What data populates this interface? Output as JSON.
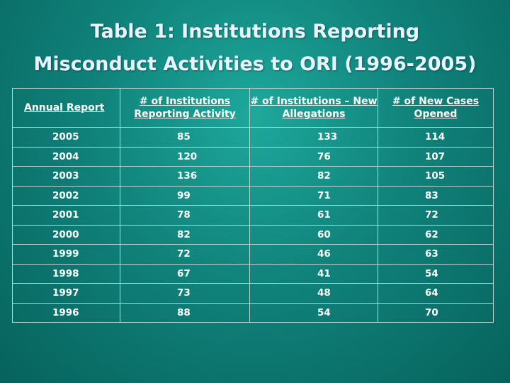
{
  "title": {
    "line1": "Table 1:  Institutions Reporting",
    "line2": "Misconduct Activities to ORI (1996-2005)"
  },
  "table": {
    "headers": [
      "Annual Report",
      "# of Institutions Reporting Activity",
      "# of Institutions – New Allegations",
      "# of New Cases Opened"
    ],
    "rows": [
      [
        "2005",
        "85",
        "133",
        "114"
      ],
      [
        "2004",
        "120",
        "76",
        "107"
      ],
      [
        "2003",
        "136",
        "82",
        "105"
      ],
      [
        "2002",
        "99",
        "71",
        "83"
      ],
      [
        "2001",
        "78",
        "61",
        "72"
      ],
      [
        "2000",
        "82",
        "60",
        "62"
      ],
      [
        "1999",
        "72",
        "46",
        "63"
      ],
      [
        "1998",
        "67",
        "41",
        "54"
      ],
      [
        "1997",
        "73",
        "48",
        "64"
      ],
      [
        "1996",
        "88",
        "54",
        "70"
      ]
    ]
  }
}
